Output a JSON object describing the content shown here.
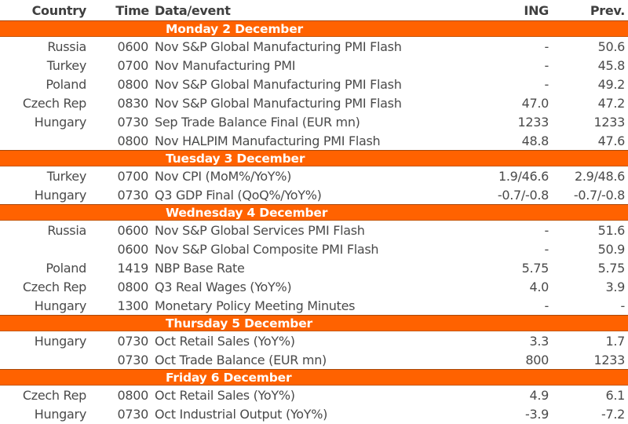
{
  "table": {
    "columns": [
      "Country",
      "Time",
      "Data/event",
      "ING",
      "Prev."
    ],
    "colors": {
      "accent_orange": "#ff6200",
      "banner_text": "#ffffff",
      "body_text": "#4a4a4a",
      "header_text": "#3f3f3f"
    },
    "sections": [
      {
        "day": "Monday 2 December",
        "rows": [
          {
            "country": "Russia",
            "time": "0600",
            "event": "Nov S&P Global Manufacturing PMI Flash",
            "ing": "-",
            "prev": "50.6"
          },
          {
            "country": "Turkey",
            "time": "0700",
            "event": "Nov Manufacturing PMI",
            "ing": "-",
            "prev": "45.8"
          },
          {
            "country": "Poland",
            "time": "0800",
            "event": "Nov S&P Global Manufacturing PMI Flash",
            "ing": "-",
            "prev": "49.2"
          },
          {
            "country": "Czech Rep",
            "time": "0830",
            "event": "Nov S&P Global Manufacturing PMI Flash",
            "ing": "47.0",
            "prev": "47.2"
          },
          {
            "country": "Hungary",
            "time": "0730",
            "event": "Sep Trade Balance Final (EUR mn)",
            "ing": "1233",
            "prev": "1233"
          },
          {
            "country": "",
            "time": "0800",
            "event": "Nov HALPIM Manufacturing PMI Flash",
            "ing": "48.8",
            "prev": "47.6"
          }
        ]
      },
      {
        "day": "Tuesday 3 December",
        "rows": [
          {
            "country": "Turkey",
            "time": "0700",
            "event": "Nov CPI (MoM%/YoY%)",
            "ing": "1.9/46.6",
            "prev": "2.9/48.6"
          },
          {
            "country": "Hungary",
            "time": "0730",
            "event": "Q3 GDP Final (QoQ%/YoY%)",
            "ing": "-0.7/-0.8",
            "prev": "-0.7/-0.8"
          }
        ]
      },
      {
        "day": "Wednesday 4 December",
        "rows": [
          {
            "country": "Russia",
            "time": "0600",
            "event": "Nov S&P Global Services PMI Flash",
            "ing": "-",
            "prev": "51.6"
          },
          {
            "country": "",
            "time": "0600",
            "event": "Nov S&P Global Composite PMI Flash",
            "ing": "-",
            "prev": "50.9"
          },
          {
            "country": "Poland",
            "time": "1419",
            "event": "NBP Base Rate",
            "ing": "5.75",
            "prev": "5.75"
          },
          {
            "country": "Czech Rep",
            "time": "0800",
            "event": "Q3 Real Wages (YoY%)",
            "ing": "4.0",
            "prev": "3.9"
          },
          {
            "country": "Hungary",
            "time": "1300",
            "event": "Monetary Policy Meeting Minutes",
            "ing": "-",
            "prev": "-"
          }
        ]
      },
      {
        "day": "Thursday 5 December",
        "rows": [
          {
            "country": "Hungary",
            "time": "0730",
            "event": "Oct Retail Sales (YoY%)",
            "ing": "3.3",
            "prev": "1.7"
          },
          {
            "country": "",
            "time": "0730",
            "event": "Oct Trade Balance (EUR mn)",
            "ing": "800",
            "prev": "1233"
          }
        ]
      },
      {
        "day": "Friday 6 December",
        "rows": [
          {
            "country": "Czech Rep",
            "time": "0800",
            "event": "Oct Retail Sales (YoY%)",
            "ing": "4.9",
            "prev": "6.1"
          },
          {
            "country": "Hungary",
            "time": "0730",
            "event": "Oct Industrial Output (YoY%)",
            "ing": "-3.9",
            "prev": "-7.2"
          }
        ]
      }
    ]
  }
}
